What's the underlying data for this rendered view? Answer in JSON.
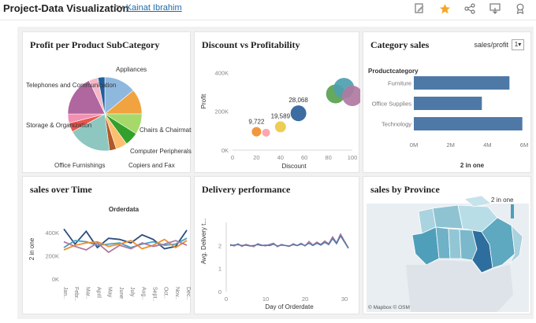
{
  "header": {
    "title": "Project-Data Visualization",
    "by": "by",
    "author": "Kainat Ibrahim"
  },
  "toolbar": {
    "icons": [
      "edit-icon",
      "star-icon",
      "share-icon",
      "download-icon",
      "badge-icon"
    ],
    "star_color": "#f5a623"
  },
  "panels": {
    "profit_subcat": {
      "title": "Profit per Product SubCategory",
      "labels": {
        "appliances": "Appliances",
        "telephones": "Telephones and Communication",
        "storage": "Storage & Organization",
        "office_furnishings": "Office Furnishings",
        "chairs": "Chairs & Chairmats",
        "computer": "Computer Peripherals",
        "copiers": "Copiers and Fax"
      }
    },
    "discount": {
      "title": "Discount vs Profitability",
      "ylabel": "Profit",
      "xlabel": "Discount"
    },
    "category": {
      "title": "Category sales",
      "control_label": "sales/profit",
      "control_value": "1",
      "header": "Productcategory",
      "xlabel": "2 in one"
    },
    "sales_time": {
      "title": "sales over Time",
      "subtitle": "Orderdata",
      "ylabel": "2 in one"
    },
    "delivery": {
      "title": "Delivery performance",
      "ylabel": "Avg. Delivery t...",
      "xlabel": "Day of Orderdate"
    },
    "province": {
      "title": "sales by Province",
      "legend": "2 in one",
      "attribution": "© Mapbox © OSM"
    }
  },
  "chart_data": [
    {
      "id": "profit_subcat",
      "type": "pie",
      "title": "Profit per Product SubCategory",
      "slices": [
        {
          "label": "Appliances",
          "value": 14,
          "color": "#8fb8de"
        },
        {
          "label": "",
          "value": 11,
          "color": "#f1a340"
        },
        {
          "label": "Chairs & Chairmats",
          "value": 9,
          "color": "#a6d96a"
        },
        {
          "label": "Computer Peripherals",
          "value": 6,
          "color": "#33a02c"
        },
        {
          "label": "Copiers and Fax",
          "value": 5,
          "color": "#fdbf6f"
        },
        {
          "label": "",
          "value": 3,
          "color": "#b15928"
        },
        {
          "label": "Office Furnishings",
          "value": 19,
          "color": "#8dc7c0"
        },
        {
          "label": "Storage & Organization",
          "value": 4,
          "color": "#e8574d"
        },
        {
          "label": "",
          "value": 4,
          "color": "#f48fb1"
        },
        {
          "label": "Telephones and Communication",
          "value": 18,
          "color": "#b0669e"
        },
        {
          "label": "",
          "value": 4,
          "color": "#f7b6c8"
        },
        {
          "label": "",
          "value": 3,
          "color": "#1f5f99"
        }
      ]
    },
    {
      "id": "discount",
      "type": "scatter",
      "title": "Discount vs Profitability",
      "xlabel": "Discount",
      "ylabel": "Profit",
      "xlim": [
        0,
        100
      ],
      "ylim": [
        0,
        430000
      ],
      "xticks": [
        0,
        20,
        40,
        60,
        80,
        100
      ],
      "yticks": [
        0,
        200000,
        400000
      ],
      "ytick_labels": [
        "0K",
        "200K",
        "400K"
      ],
      "points": [
        {
          "x": 20,
          "y": 95000,
          "r": 6,
          "color": "#f28e2b",
          "label": "9,722"
        },
        {
          "x": 28,
          "y": 90000,
          "r": 5,
          "color": "#ff9da7",
          "label": ""
        },
        {
          "x": 40,
          "y": 120000,
          "r": 7,
          "color": "#edc948",
          "label": "19,589"
        },
        {
          "x": 55,
          "y": 190000,
          "r": 10,
          "color": "#2c5f99",
          "label": "28,068"
        },
        {
          "x": 86,
          "y": 290000,
          "r": 12,
          "color": "#59a14f",
          "label": ""
        },
        {
          "x": 93,
          "y": 320000,
          "r": 13,
          "color": "#4e9fb0",
          "label": ""
        },
        {
          "x": 100,
          "y": 280000,
          "r": 13,
          "color": "#b07aa1",
          "label": ""
        }
      ]
    },
    {
      "id": "category",
      "type": "bar",
      "orientation": "horizontal",
      "title": "Category sales",
      "categories": [
        "Furniture",
        "Office Supplies",
        "Technology"
      ],
      "values": [
        5200000,
        3700000,
        5900000
      ],
      "color": "#4e79a7",
      "xlim": [
        0,
        6000000
      ],
      "xticks": [
        0,
        2000000,
        4000000,
        6000000
      ],
      "xtick_labels": [
        "0M",
        "2M",
        "4M",
        "6M"
      ],
      "xlabel": "2 in one"
    },
    {
      "id": "sales_time",
      "type": "line",
      "title": "sales over Time",
      "subtitle": "Orderdata",
      "ylabel": "2 in one",
      "categories": [
        "Jan..",
        "Febr..",
        "Mar..",
        "April",
        "May",
        "June",
        "July",
        "Aug..",
        "Sept..",
        "Oct..",
        "Nov..",
        "Dec.."
      ],
      "ylim": [
        0,
        500000
      ],
      "yticks": [
        0,
        200000,
        400000
      ],
      "ytick_labels": [
        "0K",
        "200K",
        "400K"
      ],
      "series": [
        {
          "color": "#2b4c7e",
          "values": [
            430000,
            300000,
            410000,
            270000,
            350000,
            340000,
            310000,
            380000,
            340000,
            260000,
            280000,
            420000
          ]
        },
        {
          "color": "#3fa3c6",
          "values": [
            270000,
            330000,
            320000,
            290000,
            300000,
            310000,
            270000,
            300000,
            320000,
            290000,
            300000,
            350000
          ]
        },
        {
          "color": "#f28e2b",
          "values": [
            250000,
            290000,
            310000,
            320000,
            280000,
            300000,
            330000,
            260000,
            290000,
            340000,
            270000,
            330000
          ]
        },
        {
          "color": "#b07aa1",
          "values": [
            320000,
            280000,
            250000,
            310000,
            230000,
            290000,
            260000,
            310000,
            280000,
            300000,
            330000,
            290000
          ]
        }
      ]
    },
    {
      "id": "delivery",
      "type": "line",
      "title": "Delivery performance",
      "xlabel": "Day of Orderdate",
      "ylabel": "Avg. Delivery t...",
      "xlim": [
        0,
        32
      ],
      "ylim": [
        0,
        2.8
      ],
      "xticks": [
        0,
        10,
        20,
        30
      ],
      "yticks": [
        0,
        1,
        2
      ],
      "series": [
        {
          "color": "#b07aa1",
          "x": [
            1,
            2,
            3,
            4,
            5,
            6,
            7,
            8,
            9,
            10,
            11,
            12,
            13,
            14,
            15,
            16,
            17,
            18,
            19,
            20,
            21,
            22,
            23,
            24,
            25,
            26,
            27,
            28,
            29,
            30,
            31
          ],
          "values": [
            2.05,
            1.98,
            2.08,
            1.96,
            2.05,
            2.0,
            1.95,
            2.08,
            2.02,
            1.98,
            2.05,
            2.1,
            1.95,
            2.05,
            2.0,
            1.96,
            2.08,
            2.0,
            2.1,
            1.98,
            2.18,
            2.02,
            2.15,
            2.05,
            2.2,
            2.08,
            2.38,
            2.12,
            2.5,
            2.2,
            1.9
          ]
        },
        {
          "color": "#4e79a7",
          "x": [
            1,
            2,
            3,
            4,
            5,
            6,
            7,
            8,
            9,
            10,
            11,
            12,
            13,
            14,
            15,
            16,
            17,
            18,
            19,
            20,
            21,
            22,
            23,
            24,
            25,
            26,
            27,
            28,
            29,
            30,
            31
          ],
          "values": [
            2.0,
            2.02,
            2.04,
            2.0,
            2.02,
            1.98,
            2.0,
            2.04,
            2.0,
            2.02,
            2.0,
            2.06,
            1.98,
            2.02,
            2.0,
            1.98,
            2.04,
            2.0,
            2.06,
            2.0,
            2.1,
            2.0,
            2.1,
            2.02,
            2.14,
            2.04,
            2.3,
            2.08,
            2.42,
            2.15,
            1.88
          ]
        }
      ]
    }
  ]
}
